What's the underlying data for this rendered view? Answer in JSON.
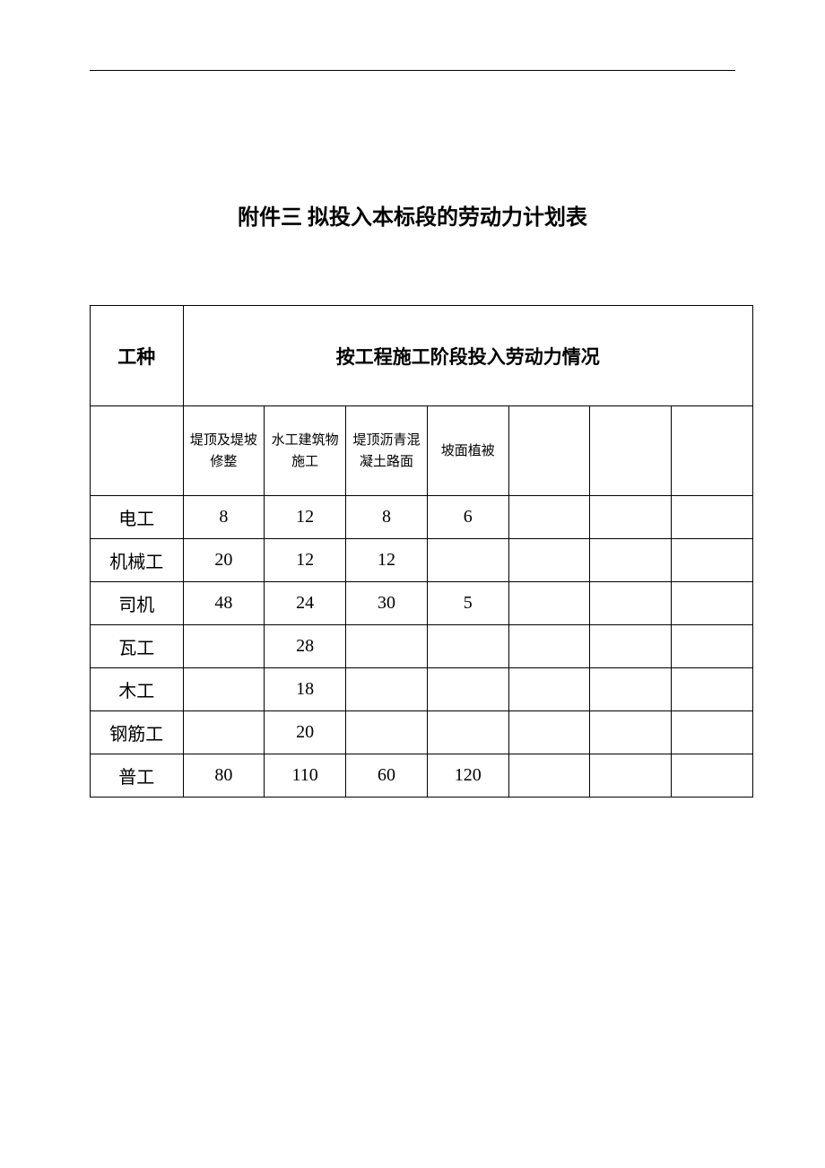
{
  "title": "附件三 拟投入本标段的劳动力计划表",
  "table": {
    "type": "table",
    "header": {
      "worker_type": "工种",
      "phase_header": "按工程施工阶段投入劳动力情况"
    },
    "subheaders": {
      "col0": "",
      "col1": "堤顶及堤坡修整",
      "col2": "水工建筑物施工",
      "col3": "堤顶沥青混凝土路面",
      "col4": "坡面植被",
      "col5": "",
      "col6": "",
      "col7": ""
    },
    "rows": [
      {
        "name": "电工",
        "c1": "8",
        "c2": "12",
        "c3": "8",
        "c4": "6",
        "c5": "",
        "c6": "",
        "c7": ""
      },
      {
        "name": "机械工",
        "c1": "20",
        "c2": "12",
        "c3": "12",
        "c4": "",
        "c5": "",
        "c6": "",
        "c7": ""
      },
      {
        "name": "司机",
        "c1": "48",
        "c2": "24",
        "c3": "30",
        "c4": "5",
        "c5": "",
        "c6": "",
        "c7": ""
      },
      {
        "name": "瓦工",
        "c1": "",
        "c2": "28",
        "c3": "",
        "c4": "",
        "c5": "",
        "c6": "",
        "c7": ""
      },
      {
        "name": "木工",
        "c1": "",
        "c2": "18",
        "c3": "",
        "c4": "",
        "c5": "",
        "c6": "",
        "c7": ""
      },
      {
        "name": "钢筋工",
        "c1": "",
        "c2": "20",
        "c3": "",
        "c4": "",
        "c5": "",
        "c6": "",
        "c7": ""
      },
      {
        "name": "普工",
        "c1": "80",
        "c2": "110",
        "c3": "60",
        "c4": "120",
        "c5": "",
        "c6": "",
        "c7": ""
      }
    ],
    "colors": {
      "border": "#000000",
      "background": "#ffffff",
      "text": "#000000"
    },
    "title_fontsize": 24,
    "header_fontsize": 21,
    "subheader_fontsize": 15,
    "data_fontsize": 20
  }
}
